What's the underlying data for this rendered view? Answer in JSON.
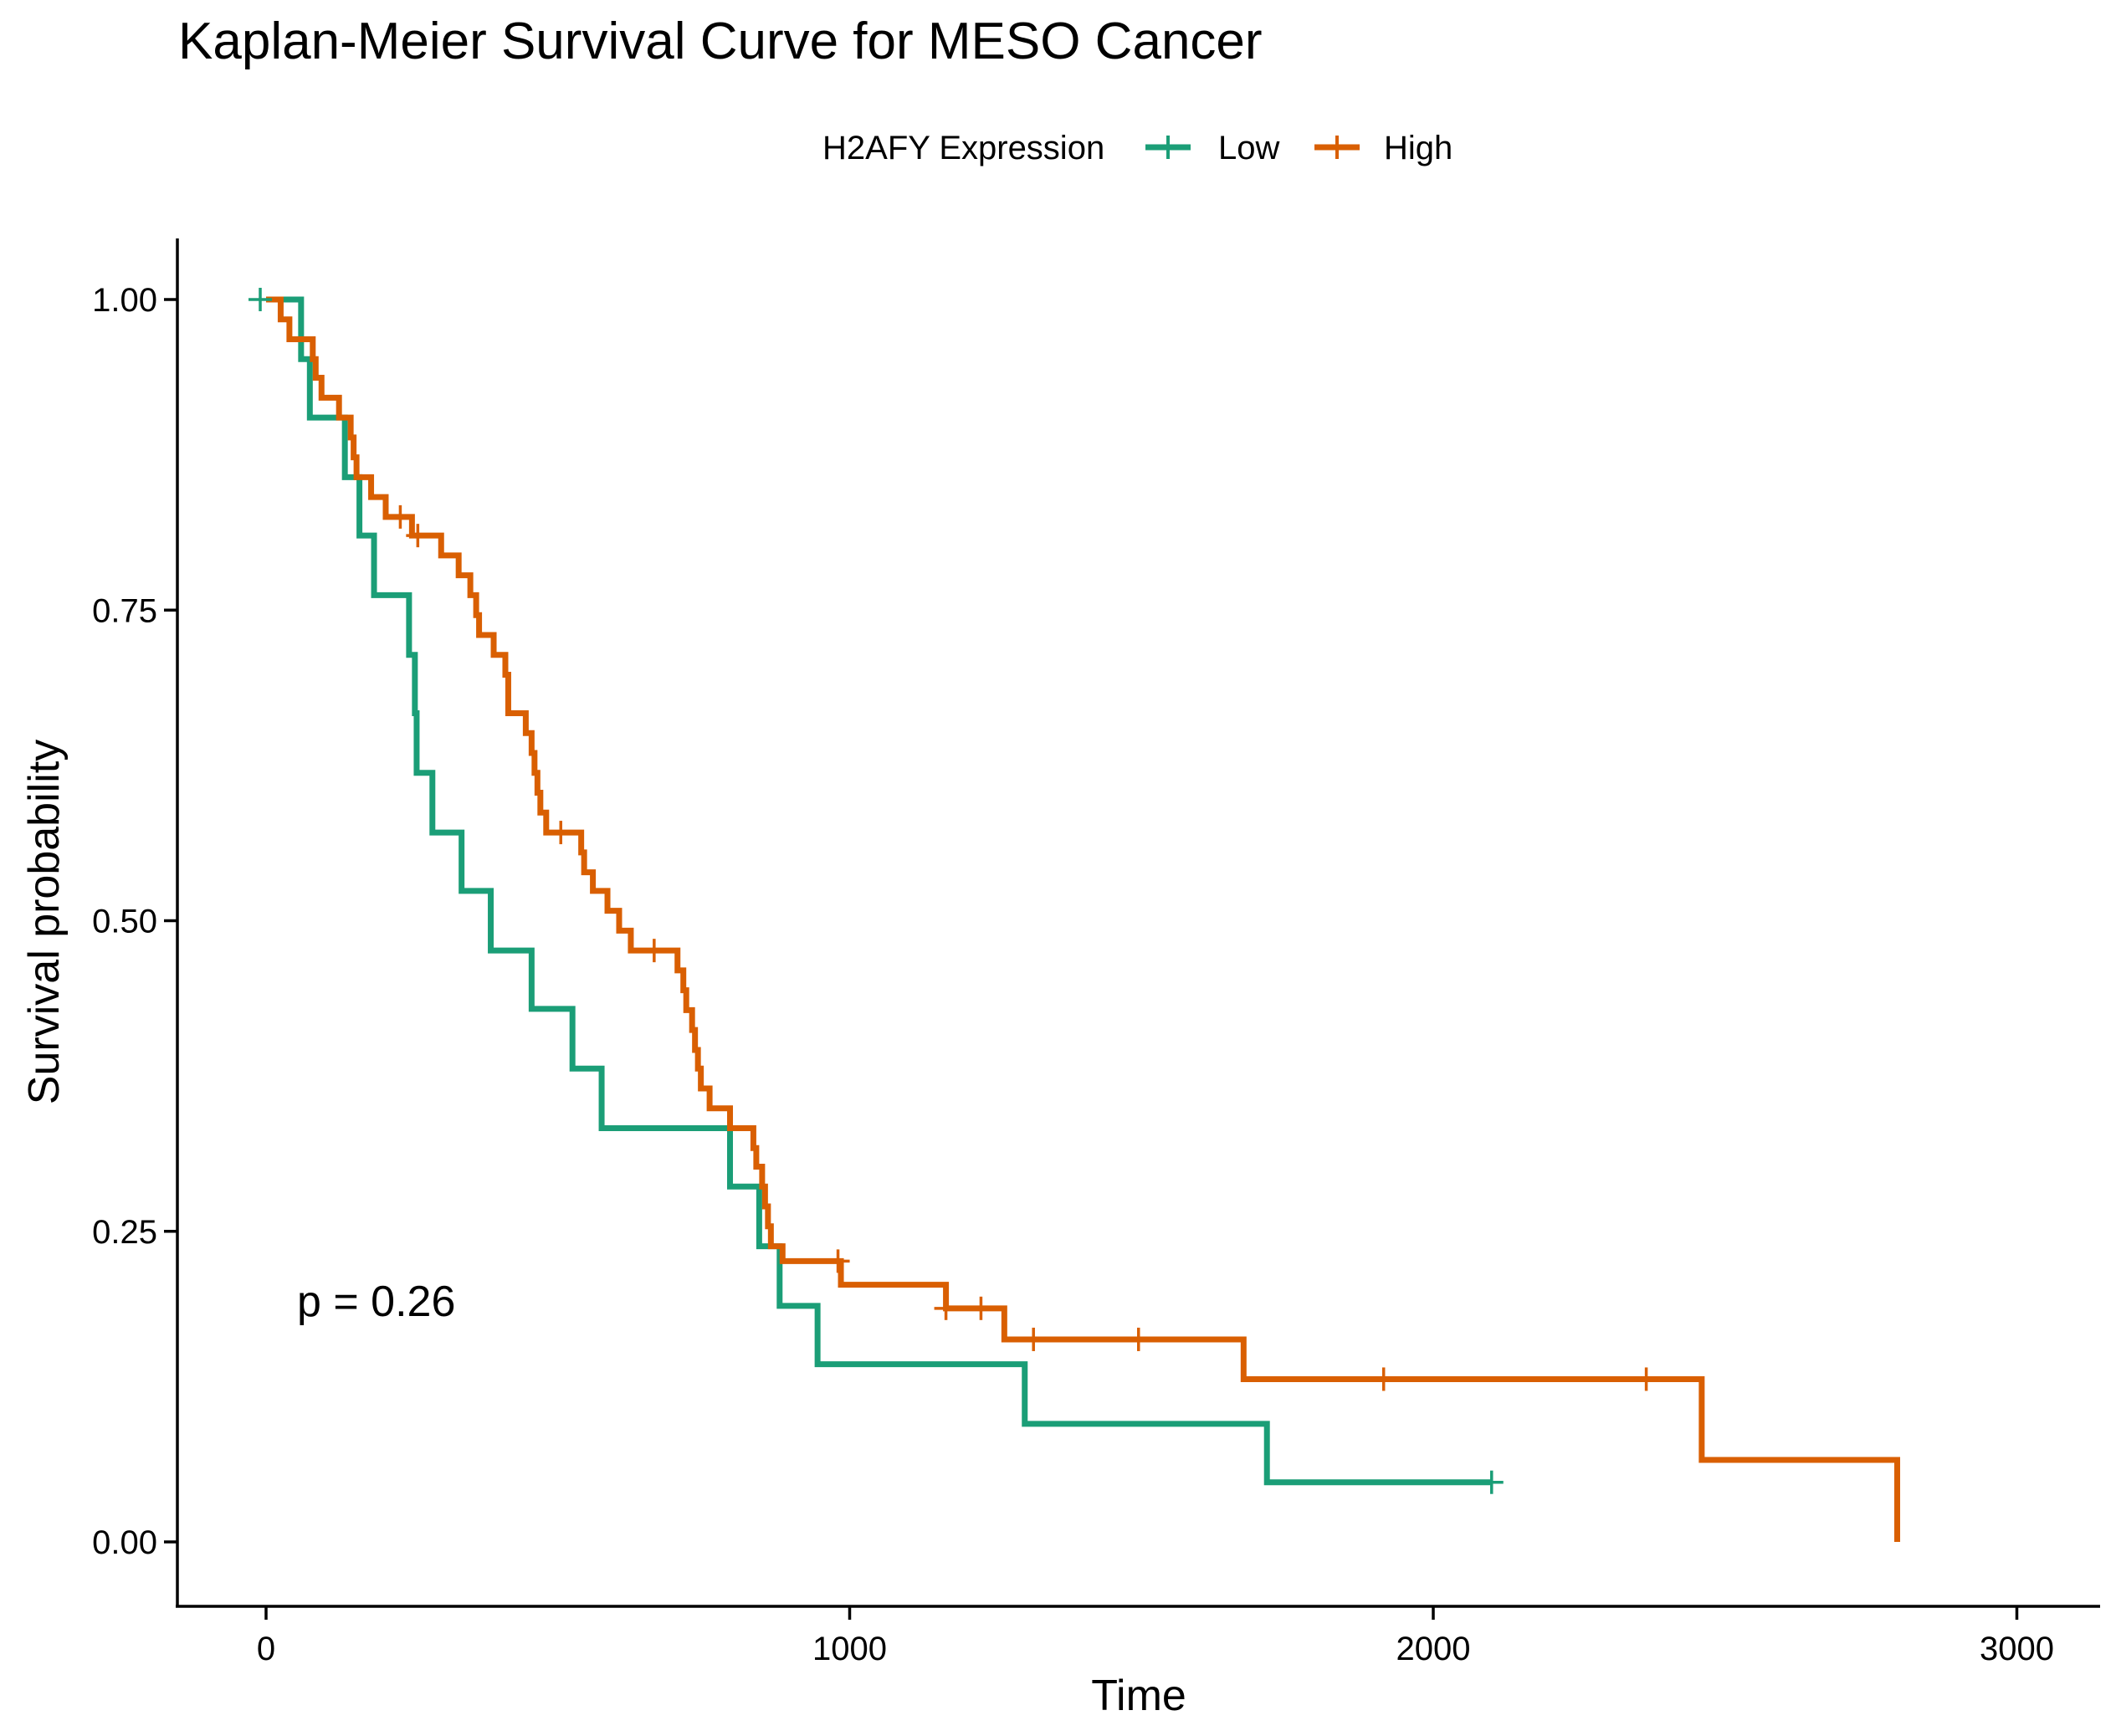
{
  "chart_data": {
    "type": "line",
    "title": "Kaplan-Meier Survival Curve for MESO Cancer",
    "xlabel": "Time",
    "ylabel": "Survival probability",
    "xlim": [
      -150,
      3150
    ],
    "ylim": [
      -0.05,
      1.05
    ],
    "x_ticks": [
      0,
      1000,
      2000,
      3000
    ],
    "x_tick_labels": [
      "0",
      "1000",
      "2000",
      "3000"
    ],
    "y_ticks": [
      0,
      0.25,
      0.5,
      0.75,
      1.0
    ],
    "y_tick_labels": [
      "0.00",
      "0.25",
      "0.50",
      "0.75",
      "1.00"
    ],
    "grid": false,
    "legend": {
      "title": "H2AFY Expression",
      "position": "top",
      "entries": [
        "Low",
        "High"
      ]
    },
    "annotation": "p = 0.26",
    "series": [
      {
        "name": "Low",
        "color": "#1b9e77",
        "steps": [
          [
            0,
            1.0
          ],
          [
            60,
            0.952
          ],
          [
            75,
            0.905
          ],
          [
            135,
            0.857
          ],
          [
            160,
            0.81
          ],
          [
            185,
            0.762
          ],
          [
            245,
            0.714
          ],
          [
            255,
            0.667
          ],
          [
            258,
            0.619
          ],
          [
            285,
            0.571
          ],
          [
            335,
            0.524
          ],
          [
            385,
            0.476
          ],
          [
            455,
            0.429
          ],
          [
            525,
            0.381
          ],
          [
            575,
            0.333
          ],
          [
            795,
            0.286
          ],
          [
            845,
            0.238
          ],
          [
            880,
            0.19
          ],
          [
            945,
            0.143
          ],
          [
            1300,
            0.095
          ],
          [
            1715,
            0.048
          ],
          [
            2100,
            0.048
          ]
        ],
        "censored": [
          [
            -10,
            1.0
          ],
          [
            2100,
            0.048
          ]
        ]
      },
      {
        "name": "High",
        "color": "#d95f02",
        "steps": [
          [
            0,
            1.0
          ],
          [
            25,
            0.984
          ],
          [
            40,
            0.968
          ],
          [
            80,
            0.952
          ],
          [
            85,
            0.937
          ],
          [
            95,
            0.921
          ],
          [
            125,
            0.905
          ],
          [
            145,
            0.889
          ],
          [
            150,
            0.873
          ],
          [
            155,
            0.857
          ],
          [
            180,
            0.841
          ],
          [
            205,
            0.825
          ],
          [
            250,
            0.81
          ],
          [
            300,
            0.794
          ],
          [
            330,
            0.778
          ],
          [
            350,
            0.762
          ],
          [
            360,
            0.746
          ],
          [
            365,
            0.73
          ],
          [
            390,
            0.714
          ],
          [
            410,
            0.698
          ],
          [
            415,
            0.667
          ],
          [
            445,
            0.651
          ],
          [
            455,
            0.635
          ],
          [
            460,
            0.619
          ],
          [
            465,
            0.603
          ],
          [
            470,
            0.587
          ],
          [
            480,
            0.571
          ],
          [
            540,
            0.555
          ],
          [
            545,
            0.539
          ],
          [
            560,
            0.524
          ],
          [
            585,
            0.508
          ],
          [
            605,
            0.492
          ],
          [
            625,
            0.476
          ],
          [
            705,
            0.46
          ],
          [
            715,
            0.444
          ],
          [
            720,
            0.428
          ],
          [
            730,
            0.412
          ],
          [
            735,
            0.396
          ],
          [
            740,
            0.381
          ],
          [
            745,
            0.365
          ],
          [
            760,
            0.349
          ],
          [
            795,
            0.333
          ],
          [
            835,
            0.317
          ],
          [
            840,
            0.302
          ],
          [
            850,
            0.286
          ],
          [
            855,
            0.27
          ],
          [
            860,
            0.254
          ],
          [
            865,
            0.238
          ],
          [
            870,
            0.238
          ],
          [
            885,
            0.226
          ],
          [
            985,
            0.207
          ],
          [
            1165,
            0.188
          ],
          [
            1265,
            0.163
          ],
          [
            1675,
            0.131
          ],
          [
            2460,
            0.066
          ],
          [
            2795,
            0.0
          ]
        ],
        "censored": [
          [
            230,
            0.825
          ],
          [
            260,
            0.81
          ],
          [
            505,
            0.571
          ],
          [
            665,
            0.476
          ],
          [
            980,
            0.226
          ],
          [
            1165,
            0.188
          ],
          [
            1225,
            0.188
          ],
          [
            1315,
            0.163
          ],
          [
            1495,
            0.163
          ],
          [
            1915,
            0.131
          ],
          [
            2365,
            0.131
          ]
        ]
      }
    ]
  }
}
